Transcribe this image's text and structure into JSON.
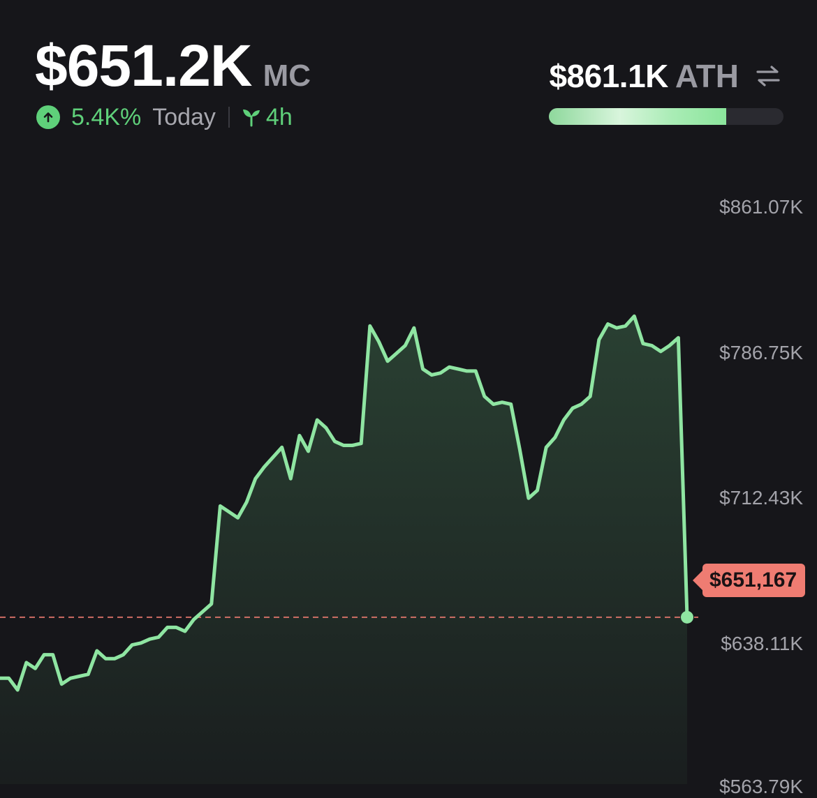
{
  "header": {
    "market_cap": "$651.2K",
    "market_cap_suffix": "MC",
    "change_pct": "5.4K%",
    "change_period": "Today",
    "age": "4h",
    "up_icon": "arrow-up-circle-icon",
    "age_icon": "sprout-icon"
  },
  "ath": {
    "value": "$861.1K",
    "label": "ATH",
    "swap_icon": "swap-arrows-icon",
    "progress_fraction": 0.756
  },
  "colors": {
    "background": "#16161a",
    "line": "#8fe5a2",
    "positive": "#5fd07a",
    "current_price": "#ef7c72",
    "muted_text": "#a3a3aa"
  },
  "chart_data": {
    "type": "area",
    "y_ticks": [
      "$861.07K",
      "$786.75K",
      "$712.43K",
      "$638.11K",
      "$563.79K"
    ],
    "current_price_label": "$651,167",
    "current_price": 651167,
    "ylim": [
      563790,
      861070
    ],
    "y": [
      620000,
      620000,
      614000,
      628000,
      625000,
      632000,
      632000,
      617000,
      620000,
      621000,
      622000,
      634000,
      630000,
      630000,
      632000,
      637000,
      638000,
      640000,
      641000,
      646000,
      646000,
      644000,
      650000,
      654000,
      658000,
      708000,
      705000,
      702000,
      710000,
      722000,
      728000,
      733000,
      738000,
      722000,
      744000,
      736000,
      752000,
      748000,
      741000,
      739000,
      739000,
      740000,
      800000,
      792000,
      782000,
      786000,
      790000,
      799000,
      778000,
      775000,
      776000,
      779000,
      778000,
      777000,
      777000,
      764000,
      760000,
      761000,
      760000,
      737000,
      712000,
      716000,
      738000,
      743000,
      752000,
      758000,
      760000,
      764000,
      793000,
      801000,
      799000,
      800000,
      805000,
      791000,
      790000,
      787000,
      790000,
      794000,
      651167
    ]
  }
}
